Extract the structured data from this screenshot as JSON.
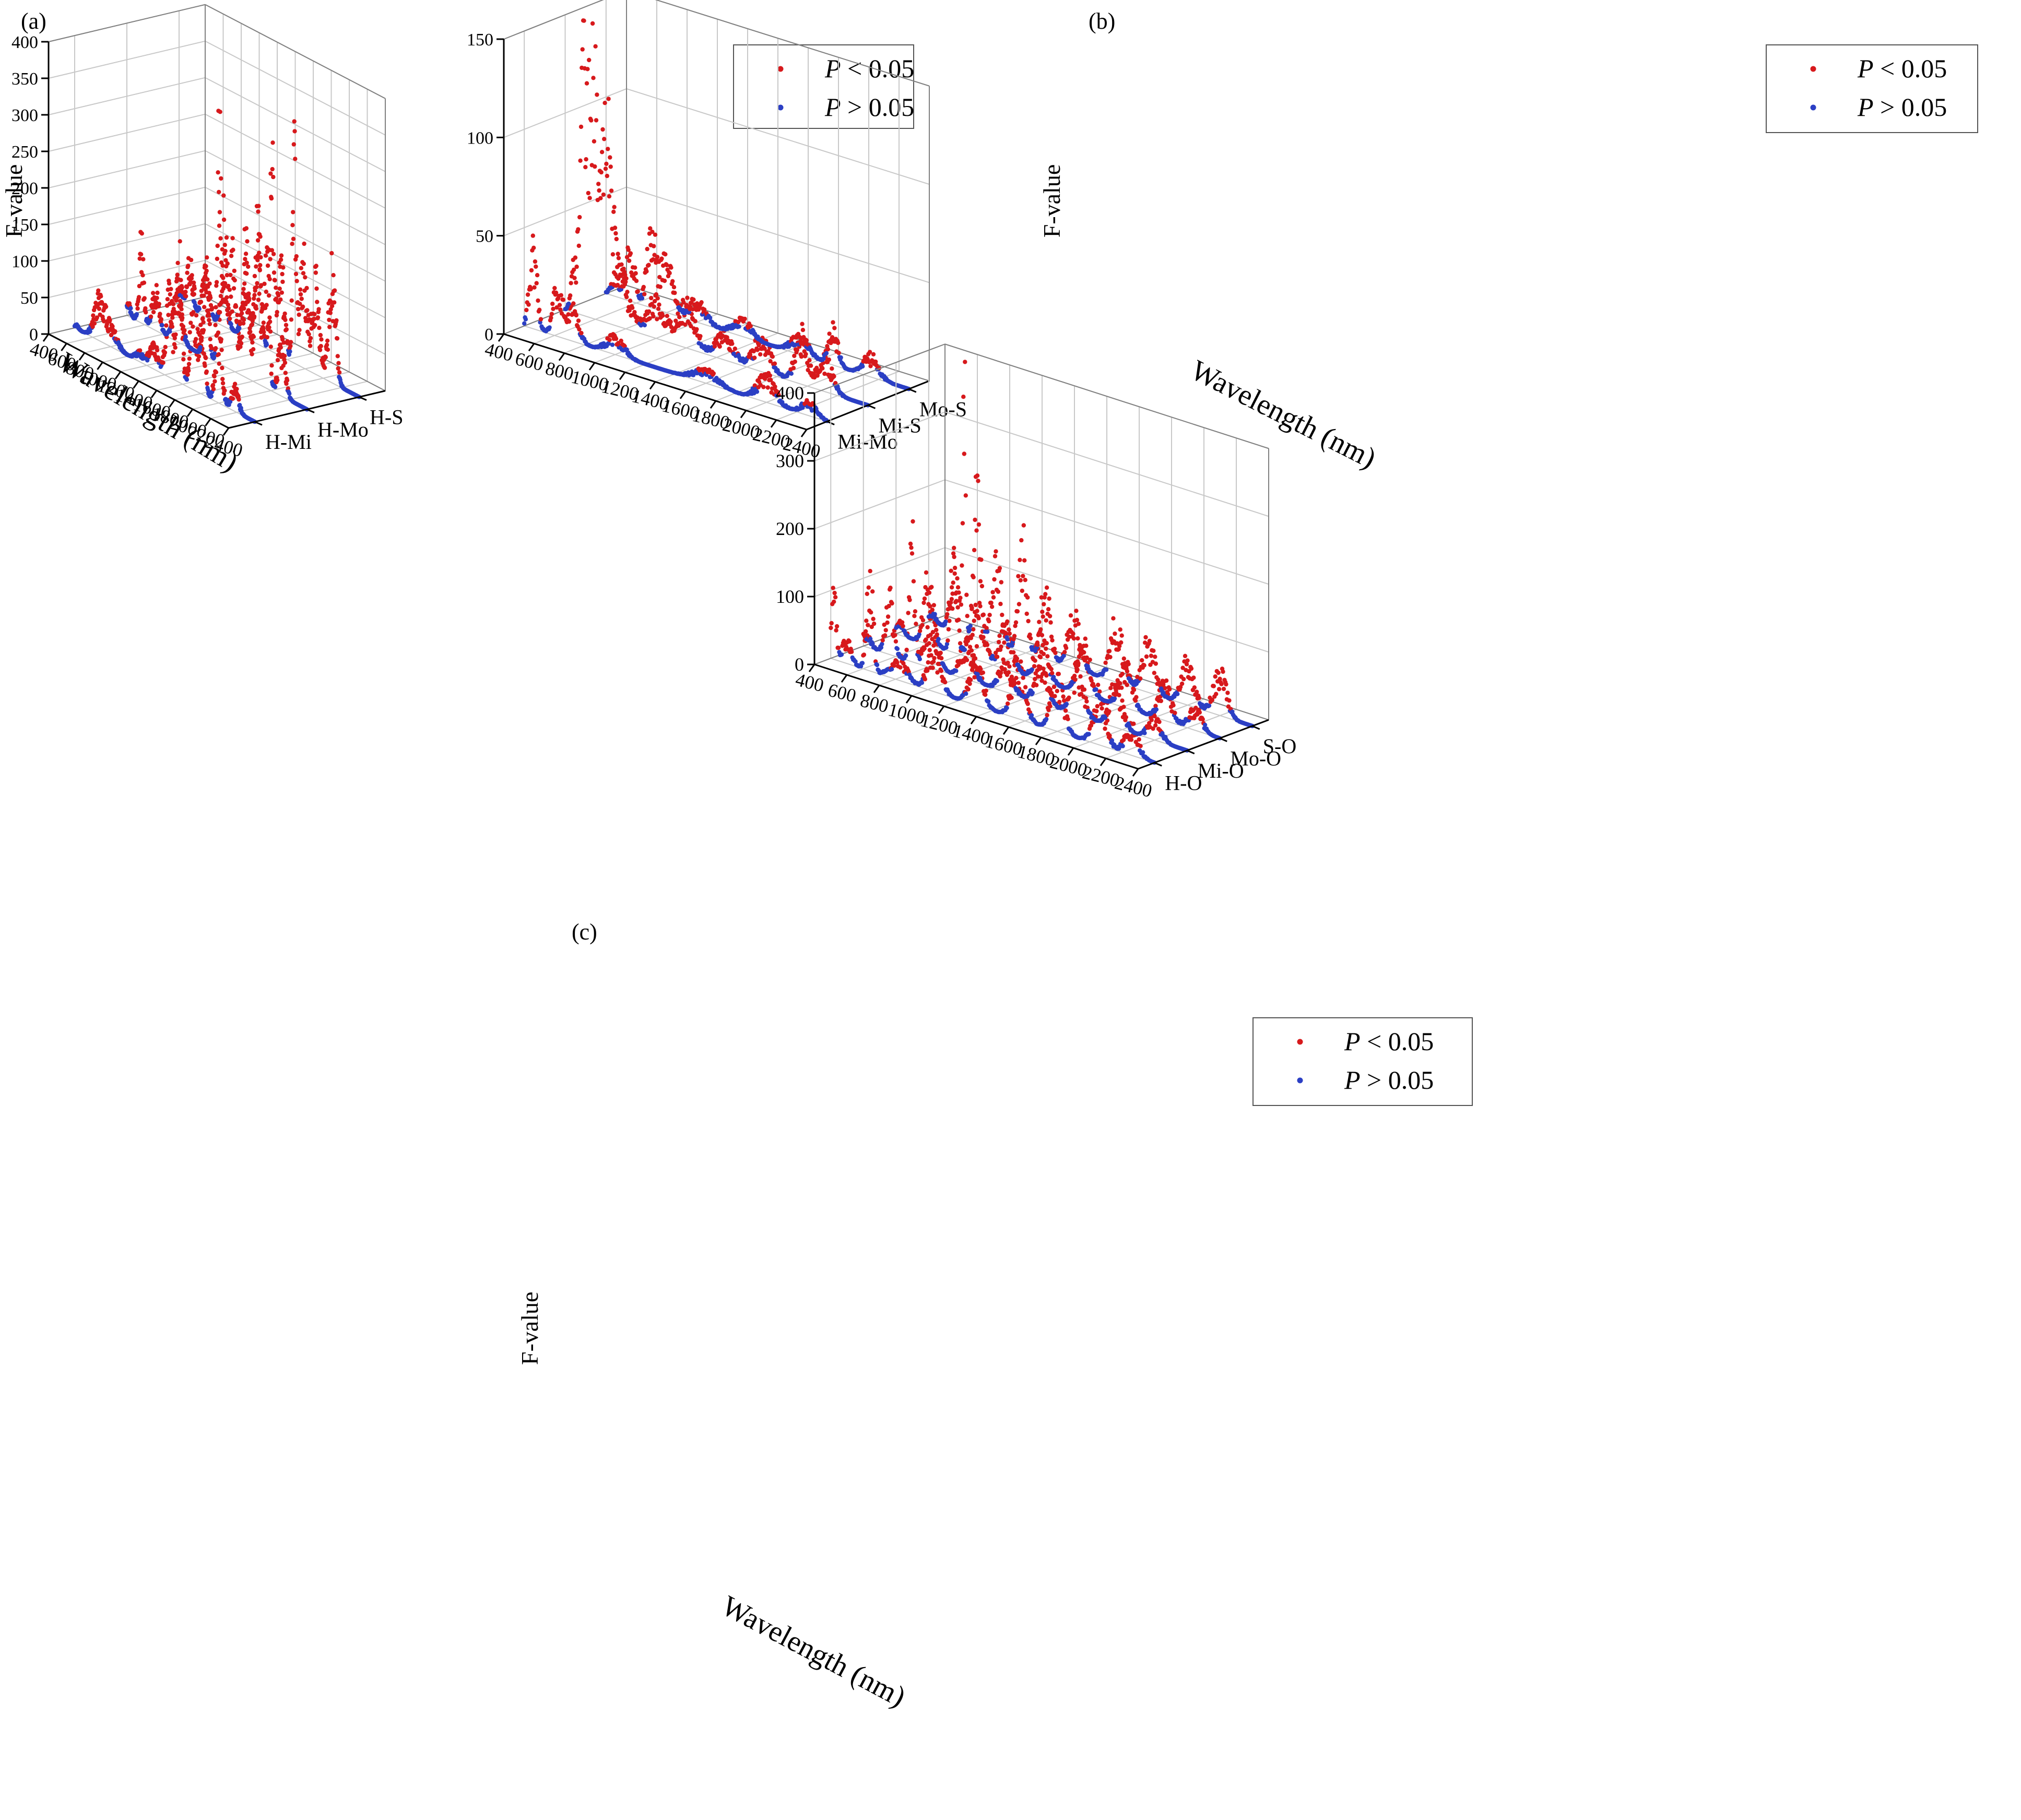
{
  "colors": {
    "significant": "#d7191c",
    "not_significant": "#2b3fc4",
    "axis": "#000000",
    "grid": "#c8c8c8",
    "background": "#ffffff"
  },
  "legend_entries": [
    {
      "label_italic": "P",
      "label_rest": " < 0.05",
      "color": "#d7191c"
    },
    {
      "label_italic": "P",
      "label_rest": " > 0.05",
      "color": "#2b3fc4"
    }
  ],
  "chart_data": [
    {
      "panel": "(a)",
      "type": "scatter",
      "title": "",
      "xlabel": "Wavelength (nm)",
      "ylabel": "F-value",
      "zlabel": "",
      "x_ticks": [
        400,
        600,
        800,
        1000,
        1200,
        1400,
        1600,
        1800,
        2000,
        2200,
        2400
      ],
      "y_ticks": [
        0,
        50,
        100,
        150,
        200,
        250,
        300,
        350,
        400
      ],
      "xlim": [
        400,
        2400
      ],
      "ylim": [
        0,
        400
      ],
      "categories": [
        "H-Mi",
        "H-Mo",
        "H-S"
      ],
      "grid": true,
      "legend": "top-right",
      "series": [
        {
          "name": "H-Mi",
          "peaks": [
            [
              420,
              5,
              25
            ],
            [
              680,
              55,
              60
            ],
            [
              820,
              22,
              60
            ],
            [
              1120,
              12,
              50
            ],
            [
              1280,
              30,
              50
            ],
            [
              1450,
              110,
              35
            ],
            [
              1560,
              160,
              30
            ],
            [
              1720,
              120,
              35
            ],
            [
              1820,
              90,
              30
            ],
            [
              2000,
              95,
              35
            ],
            [
              2180,
              30,
              40
            ]
          ]
        },
        {
          "name": "H-Mo",
          "peaks": [
            [
              420,
              15,
              25
            ],
            [
              560,
              100,
              25
            ],
            [
              720,
              50,
              40
            ],
            [
              960,
              60,
              50
            ],
            [
              1280,
              110,
              30
            ],
            [
              1420,
              320,
              18
            ],
            [
              1480,
              180,
              30
            ],
            [
              1580,
              140,
              40
            ],
            [
              1720,
              180,
              30
            ],
            [
              1860,
              160,
              40
            ],
            [
              1960,
              190,
              25
            ],
            [
              2120,
              70,
              40
            ]
          ]
        },
        {
          "name": "H-S",
          "peaks": [
            [
              420,
              20,
              25
            ],
            [
              520,
              60,
              30
            ],
            [
              700,
              60,
              40
            ],
            [
              900,
              50,
              40
            ],
            [
              1140,
              70,
              40
            ],
            [
              1280,
              170,
              30
            ],
            [
              1430,
              240,
              22
            ],
            [
              1530,
              120,
              40
            ],
            [
              1680,
              290,
              20
            ],
            [
              1780,
              140,
              40
            ],
            [
              1920,
              120,
              40
            ],
            [
              2100,
              140,
              40
            ]
          ]
        }
      ]
    },
    {
      "panel": "(b)",
      "type": "scatter",
      "title": "",
      "xlabel": "Wavelength (nm)",
      "ylabel": "F-value",
      "zlabel": "",
      "x_ticks": [
        400,
        600,
        800,
        1000,
        1200,
        1400,
        1600,
        1800,
        2000,
        2200,
        2400
      ],
      "y_ticks": [
        0,
        50,
        100,
        150
      ],
      "xlim": [
        400,
        2400
      ],
      "ylim": [
        0,
        150
      ],
      "categories": [
        "Mi-Mo",
        "Mi-S",
        "Mo-S"
      ],
      "grid": true,
      "legend": "top-right",
      "series": [
        {
          "name": "Mi-Mo",
          "peaks": [
            [
              460,
              40,
              25
            ],
            [
              620,
              25,
              30
            ],
            [
              720,
              15,
              40
            ],
            [
              1000,
              8,
              60
            ],
            [
              1600,
              6,
              80
            ],
            [
              2000,
              12,
              60
            ],
            [
              2280,
              6,
              50
            ]
          ]
        },
        {
          "name": "Mi-S",
          "peaks": [
            [
              460,
              22,
              20
            ],
            [
              520,
              140,
              20
            ],
            [
              580,
              110,
              25
            ],
            [
              660,
              95,
              40
            ],
            [
              760,
              25,
              60
            ],
            [
              1000,
              18,
              60
            ],
            [
              1200,
              20,
              60
            ],
            [
              1450,
              12,
              60
            ],
            [
              1700,
              15,
              60
            ],
            [
              1960,
              25,
              40
            ],
            [
              2120,
              15,
              50
            ]
          ]
        },
        {
          "name": "Mo-S",
          "peaks": [
            [
              460,
              10,
              25
            ],
            [
              560,
              25,
              30
            ],
            [
              700,
              35,
              30
            ],
            [
              800,
              25,
              40
            ],
            [
              1000,
              10,
              60
            ],
            [
              1300,
              8,
              60
            ],
            [
              1680,
              8,
              60
            ],
            [
              1900,
              18,
              30
            ],
            [
              2150,
              10,
              50
            ]
          ]
        }
      ]
    },
    {
      "panel": "(c)",
      "type": "scatter",
      "title": "",
      "xlabel": "Wavelength (nm)",
      "ylabel": "F-value",
      "zlabel": "",
      "x_ticks": [
        400,
        600,
        800,
        1000,
        1200,
        1400,
        1600,
        1800,
        2000,
        2200,
        2400
      ],
      "y_ticks": [
        0,
        100,
        200,
        300,
        400
      ],
      "xlim": [
        400,
        2400
      ],
      "ylim": [
        0,
        400
      ],
      "categories": [
        "H-O",
        "Mi-O",
        "Mo-O",
        "S-O"
      ],
      "grid": true,
      "legend": "top-right",
      "series": [
        {
          "name": "H-O",
          "peaks": [
            [
              420,
              90,
              15
            ],
            [
              500,
              30,
              30
            ],
            [
              640,
              140,
              20
            ],
            [
              820,
              30,
              50
            ],
            [
              1040,
              60,
              40
            ],
            [
              1300,
              70,
              40
            ],
            [
              1560,
              80,
              40
            ],
            [
              1800,
              70,
              40
            ],
            [
              2060,
              70,
              40
            ],
            [
              2260,
              40,
              40
            ]
          ]
        },
        {
          "name": "Mi-O",
          "peaks": [
            [
              420,
              20,
              25
            ],
            [
              560,
              80,
              25
            ],
            [
              700,
              200,
              15
            ],
            [
              820,
              60,
              40
            ],
            [
              1040,
              50,
              40
            ],
            [
              1280,
              40,
              40
            ],
            [
              1500,
              50,
              40
            ],
            [
              1720,
              60,
              40
            ],
            [
              1960,
              60,
              40
            ],
            [
              2200,
              30,
              40
            ]
          ]
        },
        {
          "name": "Mo-O",
          "peaks": [
            [
              420,
              20,
              25
            ],
            [
              600,
              90,
              30
            ],
            [
              760,
              120,
              20
            ],
            [
              900,
              80,
              40
            ],
            [
              1080,
              60,
              40
            ],
            [
              1300,
              60,
              40
            ],
            [
              1560,
              70,
              40
            ],
            [
              1820,
              60,
              40
            ],
            [
              2060,
              50,
              40
            ],
            [
              2250,
              30,
              40
            ]
          ]
        },
        {
          "name": "S-O",
          "peaks": [
            [
              420,
              15,
              25
            ],
            [
              560,
              100,
              25
            ],
            [
              620,
              400,
              8
            ],
            [
              700,
              200,
              20
            ],
            [
              820,
              120,
              30
            ],
            [
              980,
              150,
              25
            ],
            [
              1120,
              100,
              30
            ],
            [
              1300,
              70,
              40
            ],
            [
              1560,
              80,
              40
            ],
            [
              1760,
              70,
              40
            ],
            [
              2000,
              60,
              40
            ],
            [
              2200,
              60,
              40
            ]
          ]
        }
      ]
    }
  ]
}
